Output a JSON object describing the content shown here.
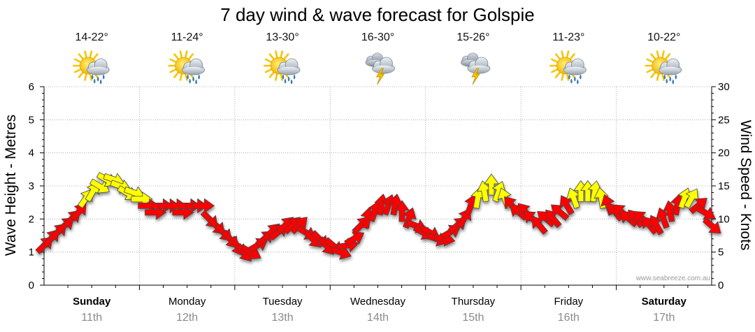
{
  "chart_data": {
    "type": "line",
    "title": "7 day wind & wave forecast for Golspie",
    "ylabel": "Wave Height - Metres",
    "y2label": "Wind Speed - Knots",
    "ylim": [
      0,
      6
    ],
    "y2lim": [
      0,
      30
    ],
    "yticks": [
      "0",
      "1",
      "2",
      "3",
      "4",
      "5",
      "6"
    ],
    "y2ticks": [
      "0",
      "5",
      "10",
      "15",
      "20",
      "25",
      "30"
    ],
    "watermark": "www.seabreeze.com.au",
    "days": [
      {
        "name": "Sunday",
        "date": "11th",
        "temp": "14-22°",
        "icon": "sun-cloud-rain-icon",
        "bold": true
      },
      {
        "name": "Monday",
        "date": "12th",
        "temp": "11-24°",
        "icon": "sun-cloud-rain-icon",
        "bold": false
      },
      {
        "name": "Tuesday",
        "date": "13th",
        "temp": "13-30°",
        "icon": "sun-cloud-rain-icon",
        "bold": false
      },
      {
        "name": "Wednesday",
        "date": "14th",
        "temp": "16-30°",
        "icon": "storm-cloud-icon",
        "bold": false
      },
      {
        "name": "Thursday",
        "date": "15th",
        "temp": "15-26°",
        "icon": "storm-cloud-icon",
        "bold": false
      },
      {
        "name": "Friday",
        "date": "16th",
        "temp": "11-23°",
        "icon": "sun-cloud-rain-icon",
        "bold": false
      },
      {
        "name": "Saturday",
        "date": "17th",
        "temp": "10-22°",
        "icon": "sun-cloud-rain-icon",
        "bold": true
      }
    ],
    "colors": {
      "strong": "#ff0000",
      "moderate": "#ffff00",
      "outline": "#444444",
      "grid": "#9a9a9a",
      "sun": "#f6c400",
      "cloud": "#b8c1cb",
      "rain": "#3a8fd8",
      "bolt": "#f2c200"
    },
    "series": [
      {
        "name": "Wind Speed (knots)",
        "axis": "right",
        "step_hours": 3,
        "values": [
          6,
          7,
          8,
          9,
          10,
          11,
          13,
          14,
          15,
          16,
          16,
          15,
          14,
          14,
          13,
          12,
          11,
          12,
          12,
          12,
          11,
          12,
          12,
          12,
          10,
          9,
          8,
          7,
          6,
          5,
          5,
          6,
          7,
          8,
          8,
          9,
          9,
          9,
          8,
          7,
          7,
          6,
          6,
          5,
          6,
          7,
          9,
          10,
          11,
          12,
          12,
          12,
          11,
          10,
          9,
          8,
          8,
          7,
          7,
          8,
          9,
          10,
          12,
          13,
          14,
          15,
          14,
          13,
          12,
          11,
          11,
          10,
          9,
          10,
          10,
          11,
          12,
          13,
          14,
          14,
          14,
          13,
          12,
          11,
          11,
          10,
          10,
          10,
          9,
          9,
          10,
          11,
          12,
          13,
          13,
          12,
          11,
          9
        ]
      },
      {
        "name": "Wind Direction (deg from)",
        "values": [
          225,
          220,
          225,
          230,
          225,
          220,
          215,
          210,
          300,
          300,
          290,
          290,
          300,
          290,
          270,
          270,
          270,
          270,
          270,
          270,
          270,
          270,
          270,
          270,
          315,
          315,
          315,
          320,
          330,
          320,
          300,
          240,
          230,
          225,
          230,
          225,
          225,
          225,
          300,
          315,
          315,
          320,
          310,
          290,
          260,
          240,
          225,
          190,
          200,
          190,
          200,
          190,
          180,
          200,
          290,
          300,
          300,
          290,
          280,
          240,
          230,
          210,
          200,
          190,
          170,
          180,
          200,
          160,
          140,
          130,
          140,
          130,
          140,
          130,
          140,
          130,
          150,
          160,
          180,
          180,
          190,
          170,
          160,
          140,
          130,
          130,
          140,
          130,
          140,
          150,
          160,
          170,
          190,
          200,
          210,
          230,
          300,
          310
        ]
      },
      {
        "name": "Wave Height (m)",
        "axis": "left",
        "values": []
      }
    ]
  }
}
